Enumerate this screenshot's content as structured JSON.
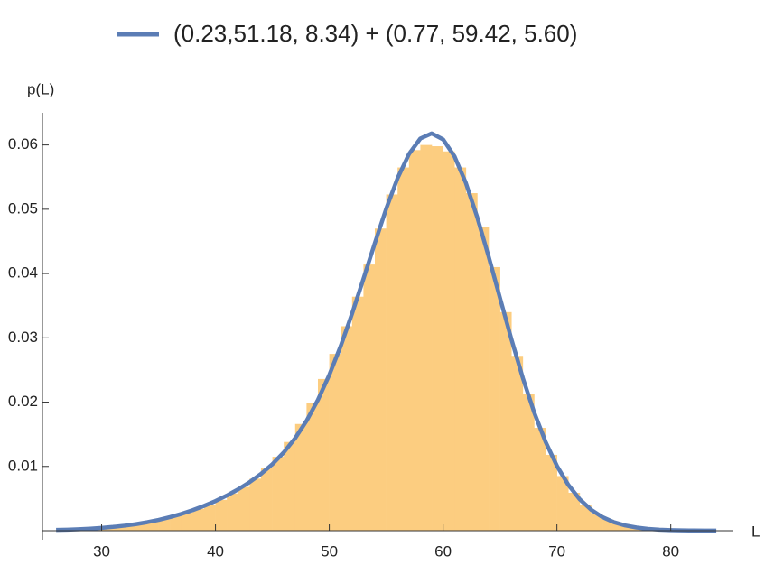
{
  "chart_data": {
    "type": "histogram",
    "x_label": "L",
    "y_label": "p(L)",
    "xlim": [
      24.8,
      85.5
    ],
    "ylim": [
      0,
      0.065
    ],
    "xticks": [
      30,
      40,
      50,
      60,
      70,
      80
    ],
    "yticks": [
      0.01,
      0.02,
      0.03,
      0.04,
      0.05,
      0.06
    ],
    "color": "#fccd80",
    "bins": [
      26,
      27,
      28,
      29,
      30,
      31,
      32,
      33,
      34,
      35,
      36,
      37,
      38,
      39,
      40,
      41,
      42,
      43,
      44,
      45,
      46,
      47,
      48,
      49,
      50,
      51,
      52,
      53,
      54,
      55,
      56,
      57,
      58,
      59,
      60,
      61,
      62,
      63,
      64,
      65,
      66,
      67,
      68,
      69,
      70,
      71,
      72,
      73,
      74,
      75,
      76,
      77,
      78,
      79,
      80,
      81,
      82,
      83,
      84
    ],
    "values": [
      0.00014,
      0.0002,
      0.00027,
      0.00038,
      0.0005,
      0.00066,
      0.00088,
      0.00112,
      0.00142,
      0.0018,
      0.00225,
      0.0028,
      0.0034,
      0.004,
      0.0048,
      0.0058,
      0.0068,
      0.0081,
      0.0097,
      0.0115,
      0.0138,
      0.0166,
      0.0198,
      0.0236,
      0.0275,
      0.0318,
      0.0364,
      0.0414,
      0.047,
      0.0523,
      0.0565,
      0.0592,
      0.06,
      0.0598,
      0.059,
      0.0565,
      0.0525,
      0.0472,
      0.041,
      0.034,
      0.0272,
      0.0212,
      0.016,
      0.0118,
      0.0085,
      0.0059,
      0.004,
      0.0026,
      0.0017,
      0.0011,
      0.0007,
      0.0004,
      0.00025,
      0.00014,
      8e-05,
      5e-05,
      3e-05,
      2e-05
    ],
    "series": [
      {
        "name": "(0.23,51.18, 8.34) + (0.77, 59.42, 5.60)",
        "type": "line",
        "color": "#5b7db5",
        "x": [
          26,
          27,
          28,
          29,
          30,
          31,
          32,
          33,
          34,
          35,
          36,
          37,
          38,
          39,
          40,
          41,
          42,
          43,
          44,
          45,
          46,
          47,
          48,
          49,
          50,
          51,
          52,
          53,
          54,
          55,
          56,
          57,
          58,
          59,
          60,
          61,
          62,
          63,
          64,
          65,
          66,
          67,
          68,
          69,
          70,
          71,
          72,
          73,
          74,
          75,
          76,
          77,
          78,
          79,
          80,
          81,
          82,
          83,
          84
        ],
        "values": [
          0.000115,
          0.00016,
          0.00023,
          0.00032,
          0.00044,
          0.00059,
          0.00078,
          0.00102,
          0.00132,
          0.00168,
          0.00211,
          0.00261,
          0.00319,
          0.00386,
          0.00461,
          0.00547,
          0.00644,
          0.00755,
          0.00883,
          0.01035,
          0.01218,
          0.01439,
          0.01709,
          0.02035,
          0.02422,
          0.02871,
          0.03376,
          0.03917,
          0.04473,
          0.05008,
          0.05484,
          0.05859,
          0.061,
          0.06179,
          0.06086,
          0.05822,
          0.05408,
          0.04875,
          0.04264,
          0.03618,
          0.02978,
          0.02377,
          0.0184,
          0.01382,
          0.01007,
          0.00712,
          0.00489,
          0.00326,
          0.00211,
          0.00133,
          0.00082,
          0.00049,
          0.00029,
          0.00016,
          9e-05,
          5e-05,
          3e-05,
          2e-05,
          1e-05
        ]
      }
    ]
  }
}
